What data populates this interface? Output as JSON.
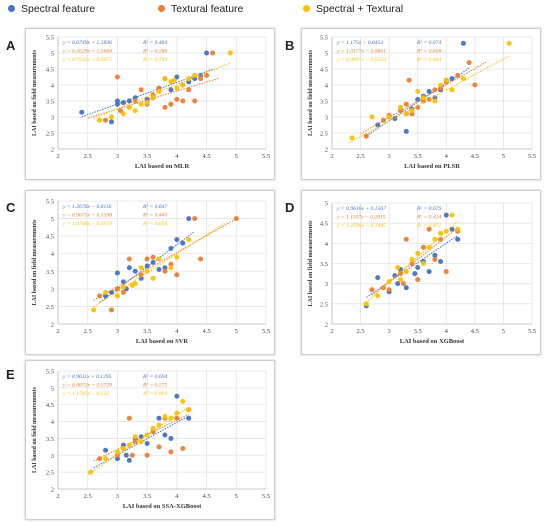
{
  "legend": {
    "items": [
      {
        "label": "Spectral feature",
        "color": "#4472c4"
      },
      {
        "label": "Textural feature",
        "color": "#ed7d31"
      },
      {
        "label": "Spectral + Textural",
        "color": "#ffc000"
      }
    ]
  },
  "colors": {
    "spectral": "#4472c4",
    "textural": "#ed7d31",
    "combined": "#ffc000"
  },
  "chart_data": [
    {
      "type": "scatter",
      "letter": "A",
      "xlabel": "LAI based on MLR",
      "ylabel": "LAI based on field measurements",
      "xlim": [
        2,
        5.5
      ],
      "ylim": [
        2,
        5.5
      ],
      "xticks": [
        "2",
        "2.5",
        "3",
        "3.5",
        "4",
        "4.5",
        "5",
        "5.5"
      ],
      "yticks": [
        "2",
        "2.5",
        "3",
        "3.5",
        "4",
        "4.5",
        "5",
        "5.5"
      ],
      "equations": [
        {
          "eq": "y = 0.6749x + 1.3836",
          "r2": "R² = 0.464"
        },
        {
          "eq": "y = 0.5629x + 1.5604",
          "r2": "R² = 0.286"
        },
        {
          "eq": "y = 0.7541x + 0.9975",
          "r2": "R² = 0.744"
        }
      ],
      "series": [
        {
          "key": "spectral",
          "slope": 0.6749,
          "intercept": 1.3836,
          "line": [
            2.4,
            4.6
          ],
          "x": [
            2.4,
            2.9,
            3.0,
            3.0,
            3.2,
            3.3,
            3.5,
            3.7,
            3.8,
            3.9,
            4.0,
            4.1,
            4.2,
            4.3,
            4.4,
            4.5,
            3.6,
            3.1
          ],
          "y": [
            3.15,
            2.85,
            3.5,
            3.4,
            3.5,
            3.6,
            3.55,
            3.9,
            4.2,
            3.85,
            4.25,
            4.0,
            4.1,
            4.2,
            4.3,
            5.0,
            3.6,
            3.45
          ]
        },
        {
          "key": "textural",
          "slope": 0.5629,
          "intercept": 1.5604,
          "line": [
            2.5,
            4.7
          ],
          "x": [
            2.8,
            3.0,
            3.2,
            3.3,
            3.4,
            3.5,
            3.6,
            3.8,
            3.9,
            4.0,
            4.1,
            4.2,
            4.3,
            4.4,
            4.6,
            3.05,
            3.7,
            4.5
          ],
          "y": [
            2.9,
            4.25,
            3.3,
            3.5,
            3.85,
            3.4,
            3.7,
            3.3,
            3.4,
            3.55,
            3.5,
            3.85,
            3.5,
            4.2,
            5.0,
            3.2,
            3.9,
            4.3
          ]
        },
        {
          "key": "combined",
          "slope": 0.7541,
          "intercept": 0.9975,
          "line": [
            2.6,
            4.9
          ],
          "x": [
            2.7,
            2.9,
            3.1,
            3.2,
            3.4,
            3.5,
            3.6,
            3.7,
            3.8,
            3.9,
            4.0,
            4.1,
            4.2,
            4.3,
            4.9,
            3.3,
            3.95
          ],
          "y": [
            2.9,
            3.0,
            3.1,
            3.3,
            3.4,
            3.45,
            3.6,
            3.8,
            4.2,
            4.1,
            3.9,
            4.0,
            4.2,
            4.3,
            5.0,
            3.2,
            4.15
          ]
        }
      ]
    },
    {
      "type": "scatter",
      "letter": "B",
      "xlabel": "LAI based on PLSR",
      "ylabel": "LAI based on field measurements",
      "xlim": [
        2,
        5.5
      ],
      "ylim": [
        2,
        5.5
      ],
      "xticks": [
        "2",
        "2.5",
        "3",
        "3.5",
        "4",
        "4.5",
        "5",
        "5.5"
      ],
      "yticks": [
        "2",
        "2.5",
        "3",
        "3.5",
        "4",
        "4.5",
        "5",
        "5.5"
      ],
      "equations": [
        {
          "eq": "y = 1.175x − 0.6454",
          "r2": "R² = 0.674"
        },
        {
          "eq": "y = 1.0177x − 0.0661",
          "r2": "R² = 0.608"
        },
        {
          "eq": "y = 0.9697x − 0.0354",
          "r2": "R² = 0.844"
        }
      ],
      "series": [
        {
          "key": "spectral",
          "slope": 1.175,
          "intercept": -0.6454,
          "line": [
            2.6,
            4.4
          ],
          "x": [
            2.8,
            3.0,
            3.1,
            3.2,
            3.3,
            3.4,
            3.5,
            3.7,
            3.8,
            3.9,
            4.0,
            4.1,
            4.3,
            3.3,
            3.6
          ],
          "y": [
            2.75,
            3.0,
            2.95,
            3.3,
            2.55,
            3.25,
            3.55,
            3.8,
            3.6,
            3.85,
            4.15,
            4.2,
            5.3,
            3.1,
            3.65
          ]
        },
        {
          "key": "textural",
          "slope": 1.0177,
          "intercept": -0.0661,
          "line": [
            2.5,
            4.7
          ],
          "x": [
            2.6,
            2.9,
            3.0,
            3.2,
            3.3,
            3.4,
            3.5,
            3.6,
            3.7,
            3.8,
            3.9,
            4.0,
            4.2,
            4.4,
            4.5,
            3.35
          ],
          "y": [
            2.4,
            2.9,
            3.05,
            3.2,
            3.4,
            3.1,
            3.3,
            3.5,
            3.55,
            3.85,
            3.9,
            4.1,
            4.3,
            4.7,
            4.0,
            4.15
          ]
        },
        {
          "key": "combined",
          "slope": 0.9697,
          "intercept": -0.0354,
          "line": [
            2.3,
            5.1
          ],
          "x": [
            2.35,
            2.7,
            3.0,
            3.2,
            3.4,
            3.5,
            3.6,
            3.8,
            3.9,
            4.0,
            4.1,
            4.3,
            5.1,
            3.3
          ],
          "y": [
            2.35,
            3.0,
            3.0,
            3.3,
            3.2,
            3.8,
            3.6,
            3.5,
            4.0,
            4.15,
            3.85,
            4.2,
            5.3,
            3.1
          ]
        }
      ]
    },
    {
      "type": "scatter",
      "letter": "C",
      "xlabel": "LAI based on SVR",
      "ylabel": "LAI based on field measurements",
      "xlim": [
        2,
        5.5
      ],
      "ylim": [
        2,
        5.5
      ],
      "xticks": [
        "2",
        "2.5",
        "3",
        "3.5",
        "4",
        "4.5",
        "5",
        "5.5"
      ],
      "yticks": [
        "2",
        "2.5",
        "3",
        "3.5",
        "4",
        "4.5",
        "5",
        "5.5"
      ],
      "equations": [
        {
          "eq": "y = 1.2676x − 0.8116",
          "r2": "R² = 0.647"
        },
        {
          "eq": "y = 0.9675x + 0.1598",
          "r2": "R² = 0.440"
        },
        {
          "eq": "y = 1.0768x − 0.3079",
          "r2": "R² = 0.694"
        }
      ],
      "series": [
        {
          "key": "spectral",
          "slope": 1.2676,
          "intercept": -0.8116,
          "line": [
            2.7,
            4.3
          ],
          "x": [
            2.8,
            2.9,
            3.0,
            3.1,
            3.2,
            3.3,
            3.4,
            3.5,
            3.6,
            3.7,
            3.8,
            3.9,
            4.0,
            4.1,
            4.2,
            3.15
          ],
          "y": [
            2.8,
            2.9,
            3.45,
            3.2,
            3.6,
            3.5,
            3.3,
            3.65,
            3.75,
            3.55,
            3.6,
            4.15,
            4.4,
            4.3,
            5.0,
            3.0
          ]
        },
        {
          "key": "textural",
          "slope": 0.9675,
          "intercept": 0.1598,
          "line": [
            2.6,
            5.0
          ],
          "x": [
            2.7,
            2.9,
            3.0,
            3.2,
            3.4,
            3.5,
            3.6,
            3.8,
            3.9,
            4.0,
            4.3,
            4.4,
            5.0,
            3.1
          ],
          "y": [
            2.8,
            2.4,
            3.0,
            3.85,
            3.4,
            3.85,
            3.9,
            3.5,
            3.7,
            3.4,
            5.0,
            3.85,
            5.0,
            2.9
          ]
        },
        {
          "key": "combined",
          "slope": 1.0768,
          "intercept": -0.3079,
          "line": [
            2.6,
            4.8
          ],
          "x": [
            2.6,
            2.8,
            3.0,
            3.1,
            3.3,
            3.4,
            3.5,
            3.6,
            3.7,
            3.9,
            4.0,
            4.2,
            3.25
          ],
          "y": [
            2.4,
            2.9,
            2.8,
            3.05,
            3.15,
            3.6,
            3.5,
            3.3,
            3.85,
            3.6,
            3.9,
            4.4,
            3.1
          ]
        }
      ]
    },
    {
      "type": "scatter",
      "letter": "D",
      "xlabel": "LAI based on XGBoost",
      "ylabel": "LAI based on field measurements",
      "xlim": [
        2,
        5.5
      ],
      "ylim": [
        2,
        5
      ],
      "xticks": [
        "2",
        "2.5",
        "3",
        "3.5",
        "4",
        "4.5",
        "5",
        "5.5"
      ],
      "yticks": [
        "2",
        "2.5",
        "3",
        "3.5",
        "4",
        "4.5",
        "5"
      ],
      "equations": [
        {
          "eq": "y = 0.9616x + 0.1567",
          "r2": "R² = 0.679"
        },
        {
          "eq": "y = 1.1107x − 0.2815",
          "r2": "R² = 0.414"
        },
        {
          "eq": "y = 1.2596x − 0.7445",
          "r2": "R² = 0.871"
        }
      ],
      "series": [
        {
          "key": "spectral",
          "slope": 0.9616,
          "intercept": 0.1567,
          "line": [
            2.6,
            4.2
          ],
          "x": [
            2.6,
            2.8,
            3.0,
            3.1,
            3.2,
            3.3,
            3.5,
            3.6,
            3.7,
            3.8,
            3.9,
            4.0,
            4.1,
            4.2,
            3.15,
            3.45
          ],
          "y": [
            2.45,
            3.15,
            2.8,
            3.2,
            3.35,
            2.9,
            3.4,
            3.55,
            3.3,
            3.7,
            3.55,
            4.7,
            4.35,
            4.1,
            3.0,
            3.25
          ]
        },
        {
          "key": "textural",
          "slope": 1.1107,
          "intercept": -0.2815,
          "line": [
            2.7,
            4.2
          ],
          "x": [
            2.7,
            2.9,
            3.0,
            3.2,
            3.3,
            3.4,
            3.5,
            3.6,
            3.7,
            3.8,
            3.9,
            4.0,
            4.2,
            3.25
          ],
          "y": [
            2.85,
            2.9,
            2.85,
            3.25,
            4.1,
            3.5,
            3.1,
            3.9,
            4.35,
            3.6,
            4.1,
            3.3,
            4.3,
            3.0
          ]
        },
        {
          "key": "combined",
          "slope": 1.2596,
          "intercept": -0.7445,
          "line": [
            2.6,
            4.2
          ],
          "x": [
            2.6,
            2.8,
            3.0,
            3.2,
            3.3,
            3.4,
            3.5,
            3.6,
            3.7,
            3.8,
            3.9,
            4.0,
            4.1,
            4.2,
            3.15
          ],
          "y": [
            2.5,
            2.7,
            3.05,
            3.1,
            3.3,
            3.6,
            3.75,
            3.5,
            3.9,
            4.1,
            4.25,
            4.3,
            4.7,
            4.35,
            3.4
          ]
        }
      ]
    },
    {
      "type": "scatter",
      "letter": "E",
      "xlabel": "LAI based on SSA-XGBoost",
      "ylabel": "LAI based on field measurements",
      "xlim": [
        2,
        5.5
      ],
      "ylim": [
        2,
        5.5
      ],
      "xticks": [
        "2",
        "2.5",
        "3",
        "3.5",
        "4",
        "4.5",
        "5",
        "5.5"
      ],
      "yticks": [
        "2",
        "2.5",
        "3",
        "3.5",
        "4",
        "4.5",
        "5",
        "5.5"
      ],
      "equations": [
        {
          "eq": "y = 0.9611x + 0.1295",
          "r2": "R² = 0.694"
        },
        {
          "eq": "y = 0.8672x + 0.5729",
          "r2": "R² = 0.275"
        },
        {
          "eq": "y = 1.1785x − 0.522",
          "r2": "R² = 0.893"
        }
      ],
      "series": [
        {
          "key": "spectral",
          "slope": 0.9611,
          "intercept": 0.1295,
          "line": [
            2.6,
            4.2
          ],
          "x": [
            2.8,
            3.0,
            3.1,
            3.2,
            3.3,
            3.4,
            3.5,
            3.7,
            3.8,
            3.9,
            4.0,
            4.2,
            3.15,
            3.6
          ],
          "y": [
            3.15,
            2.9,
            3.3,
            2.85,
            3.5,
            3.55,
            3.35,
            4.1,
            3.6,
            3.5,
            4.75,
            4.1,
            3.0,
            3.7
          ]
        },
        {
          "key": "textural",
          "slope": 0.8672,
          "intercept": 0.5729,
          "line": [
            2.6,
            4.2
          ],
          "x": [
            2.7,
            3.0,
            3.1,
            3.2,
            3.3,
            3.5,
            3.6,
            3.7,
            3.8,
            3.9,
            4.0,
            4.1,
            4.2,
            3.25
          ],
          "y": [
            2.9,
            3.0,
            3.2,
            4.1,
            3.4,
            3.0,
            3.7,
            3.25,
            4.1,
            3.1,
            4.1,
            3.2,
            4.35,
            3.0
          ]
        },
        {
          "key": "combined",
          "slope": 1.1785,
          "intercept": -0.522,
          "line": [
            2.5,
            4.2
          ],
          "x": [
            2.55,
            2.8,
            3.0,
            3.1,
            3.3,
            3.4,
            3.5,
            3.6,
            3.7,
            3.8,
            3.9,
            4.0,
            4.1,
            4.2,
            3.2
          ],
          "y": [
            2.5,
            2.9,
            3.1,
            3.2,
            3.55,
            3.4,
            3.6,
            3.8,
            3.9,
            4.15,
            4.1,
            4.25,
            4.6,
            4.35,
            3.3
          ]
        }
      ]
    }
  ]
}
